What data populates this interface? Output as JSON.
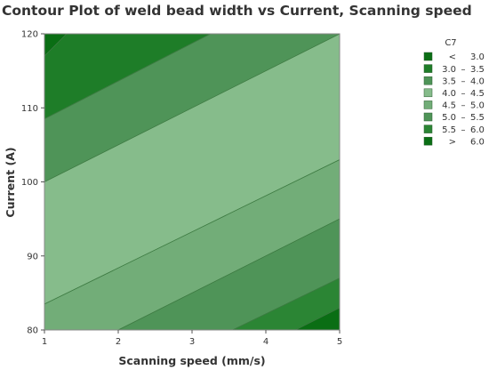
{
  "chart_data": {
    "type": "contour",
    "title": "Contour Plot of weld bead width vs Current, Scanning speed",
    "xlabel": "Scanning speed (mm/s)",
    "ylabel": "Current (A)",
    "xlim": [
      1,
      5
    ],
    "ylim": [
      80,
      120
    ],
    "x_ticks": [
      "1",
      "2",
      "3",
      "4",
      "5"
    ],
    "y_ticks": [
      "80",
      "90",
      "100",
      "110",
      "120"
    ],
    "z_name": "C7",
    "legend_position": "right",
    "bands": [
      {
        "label_lo": "<",
        "label_dash": "",
        "label_hi": "3.0",
        "color": "#0a6e14"
      },
      {
        "label_lo": "3.0",
        "label_dash": "–",
        "label_hi": "3.5",
        "color": "#1e7d28"
      },
      {
        "label_lo": "3.5",
        "label_dash": "–",
        "label_hi": "4.0",
        "color": "#4f9458"
      },
      {
        "label_lo": "4.0",
        "label_dash": "–",
        "label_hi": "4.5",
        "color": "#86bc8b"
      },
      {
        "label_lo": "4.5",
        "label_dash": "–",
        "label_hi": "5.0",
        "color": "#72ad78"
      },
      {
        "label_lo": "5.0",
        "label_dash": "–",
        "label_hi": "5.5",
        "color": "#4f9458"
      },
      {
        "label_lo": "5.5",
        "label_dash": "–",
        "label_hi": "6.0",
        "color": "#2b8534"
      },
      {
        "label_lo": ">",
        "label_dash": "",
        "label_hi": "6.0",
        "color": "#0a6e14"
      }
    ],
    "contour_lines": [
      {
        "band_boundary": "< 3.0 | 3.0–3.5",
        "points": [
          [
            1,
            117
          ],
          [
            1.3,
            120
          ]
        ]
      },
      {
        "band_boundary": "3.0–3.5 | 3.5–4.0",
        "points": [
          [
            1,
            108.5
          ],
          [
            3.25,
            120
          ]
        ]
      },
      {
        "band_boundary": "3.5–4.0 | 4.0–4.5",
        "points": [
          [
            1,
            100
          ],
          [
            5,
            120
          ]
        ]
      },
      {
        "band_boundary": "4.0–4.5 | 4.5–5.0",
        "points": [
          [
            1,
            83.5
          ],
          [
            5,
            103
          ]
        ]
      },
      {
        "band_boundary": "4.5–5.0 | 5.0–5.5",
        "points": [
          [
            2,
            80
          ],
          [
            5,
            95
          ]
        ]
      },
      {
        "band_boundary": "5.0–5.5 | 5.5–6.0",
        "points": [
          [
            3.55,
            80
          ],
          [
            5,
            87
          ]
        ]
      },
      {
        "band_boundary": "5.5–6.0 | > 6.0",
        "points": [
          [
            4.4,
            80
          ],
          [
            5,
            83
          ]
        ]
      }
    ]
  }
}
